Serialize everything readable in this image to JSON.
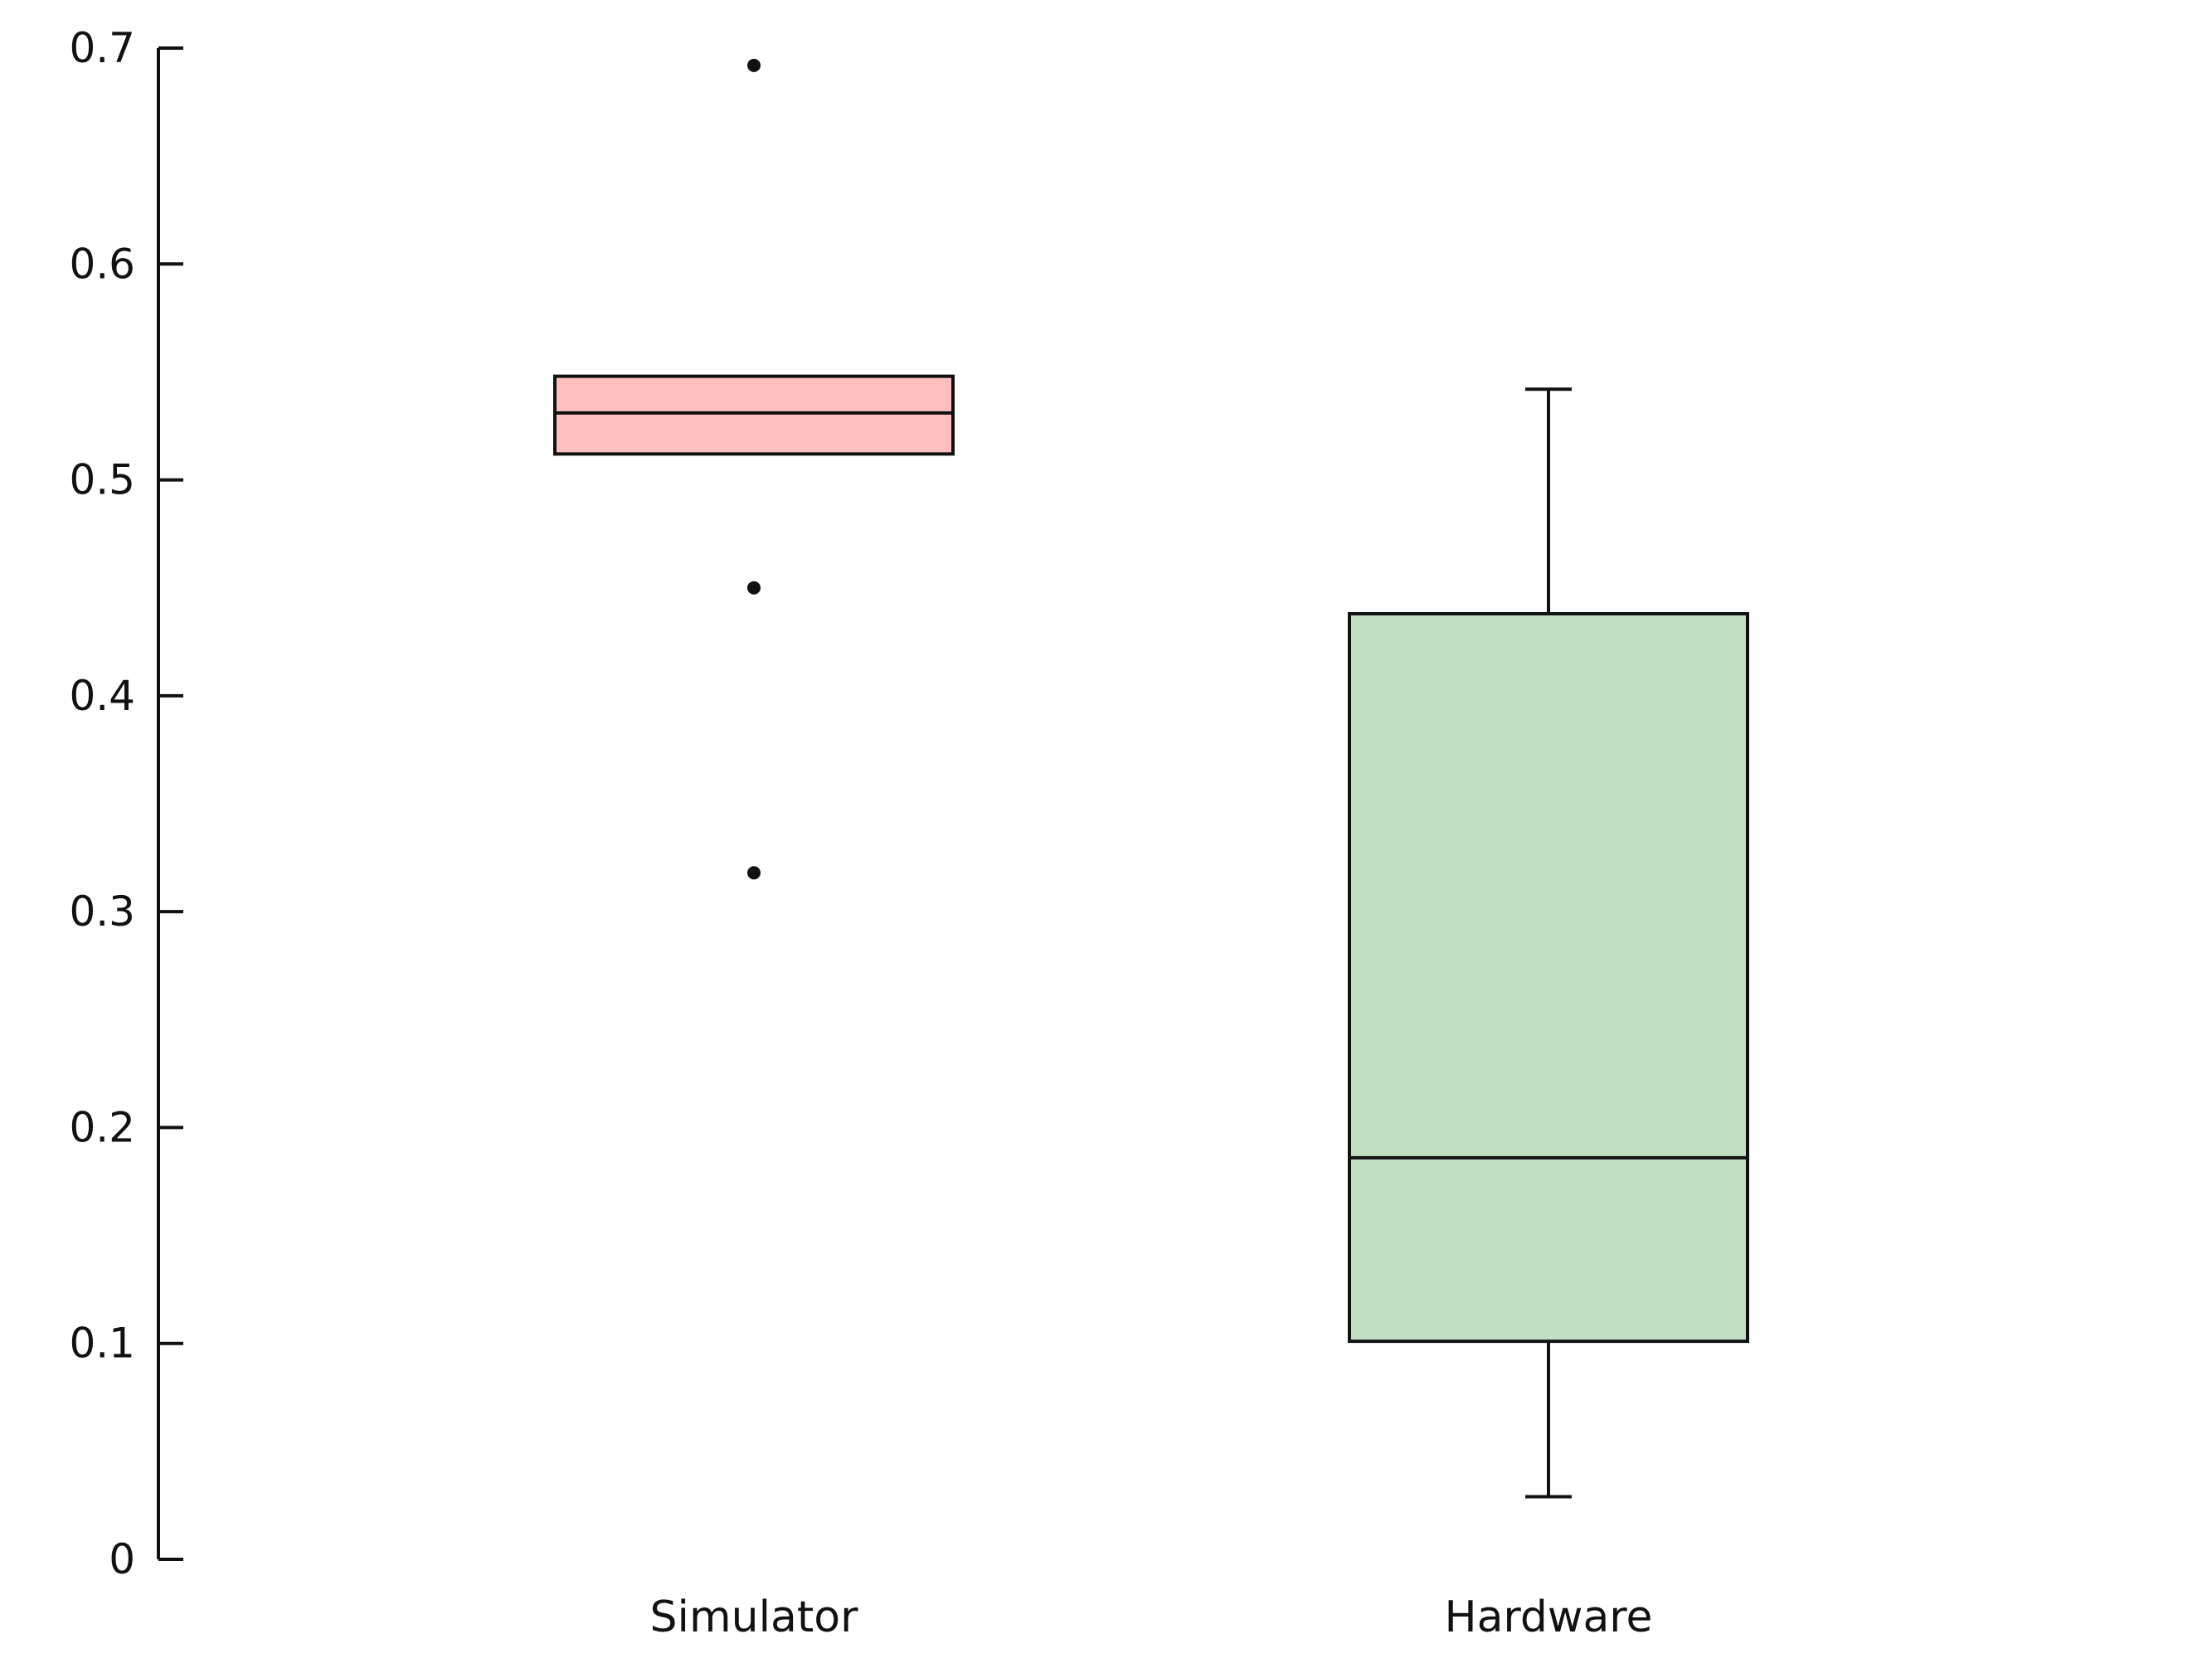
{
  "chart_data": {
    "type": "box",
    "title": "",
    "xlabel": "",
    "ylabel": "",
    "ylim": [
      0,
      0.7
    ],
    "yticks": [
      0,
      0.1,
      0.2,
      0.3,
      0.4,
      0.5,
      0.6,
      0.7
    ],
    "ytick_labels": [
      "0",
      "0.1",
      "0.2",
      "0.3",
      "0.4",
      "0.5",
      "0.6",
      "0.7"
    ],
    "categories": [
      "Simulator",
      "Hardware"
    ],
    "grid": false,
    "boxes": [
      {
        "category": "Simulator",
        "color": "#ffbfbf",
        "q1": 0.512,
        "median": 0.531,
        "q3": 0.548,
        "whisker_low": 0.512,
        "whisker_high": 0.548,
        "outliers": [
          0.692,
          0.45,
          0.318
        ]
      },
      {
        "category": "Hardware",
        "color": "#c1e0c1",
        "q1": 0.101,
        "median": 0.186,
        "q3": 0.438,
        "whisker_low": 0.029,
        "whisker_high": 0.542,
        "outliers": []
      }
    ]
  }
}
